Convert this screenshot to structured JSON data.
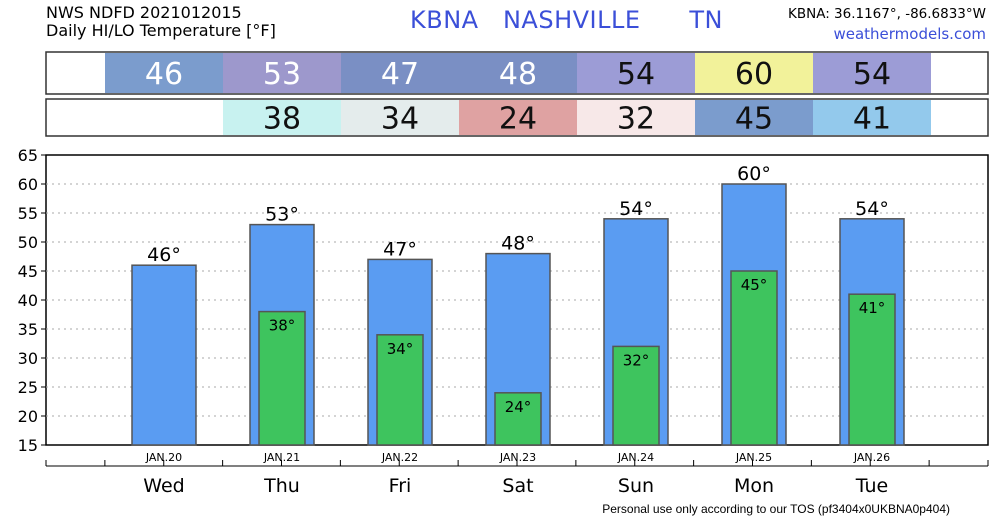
{
  "header": {
    "source_line": "NWS NDFD 2021012015",
    "product_line": "Daily HI/LO Temperature [°F]",
    "station_id": "KBNA",
    "city": "NASHVILLE",
    "state": "TN",
    "coords": "KBNA: 36.1167°, -86.6833°W",
    "site": "weathermodels.com"
  },
  "footer": {
    "disclaimer": "Personal use only according to our TOS (pf3404x0UKBNA0p404)"
  },
  "colors": {
    "high_bar": "#5a9cf2",
    "low_bar": "#3ec45e",
    "bar_stroke": "#555555",
    "table_stroke": "#333333"
  },
  "hi_table": [
    {
      "value": "46",
      "color": "#7b9ccd"
    },
    {
      "value": "53",
      "color": "#9d98cc"
    },
    {
      "value": "47",
      "color": "#7a8fc4"
    },
    {
      "value": "48",
      "color": "#7a8fc4"
    },
    {
      "value": "54",
      "color": "#9c9cd6"
    },
    {
      "value": "60",
      "color": "#f2f29a"
    },
    {
      "value": "54",
      "color": "#9c9cd6"
    }
  ],
  "lo_table": [
    {
      "value": "",
      "color": "#ffffff"
    },
    {
      "value": "38",
      "color": "#c8f2f0"
    },
    {
      "value": "34",
      "color": "#e4ecec"
    },
    {
      "value": "24",
      "color": "#dfa2a2"
    },
    {
      "value": "32",
      "color": "#f7e8e8"
    },
    {
      "value": "45",
      "color": "#7b9ccd"
    },
    {
      "value": "41",
      "color": "#93c9ec"
    }
  ],
  "chart_data": {
    "type": "bar",
    "categories": [
      "Wed",
      "Thu",
      "Fri",
      "Sat",
      "Sun",
      "Mon",
      "Tue"
    ],
    "dates": [
      "JAN.20",
      "JAN.21",
      "JAN.22",
      "JAN.23",
      "JAN.24",
      "JAN.25",
      "JAN.26"
    ],
    "series": [
      {
        "values": [
          46,
          53,
          47,
          48,
          54,
          60,
          54
        ],
        "labels": [
          "46°",
          "53°",
          "47°",
          "48°",
          "54°",
          "60°",
          "54°"
        ]
      },
      {
        "values": [
          null,
          38,
          34,
          24,
          32,
          45,
          41
        ],
        "labels": [
          "",
          "38°",
          "34°",
          "24°",
          "32°",
          "45°",
          "41°"
        ]
      }
    ],
    "title": "Daily HI/LO Temperature [°F]",
    "xlabel": "",
    "ylabel": "",
    "ylim": [
      15,
      65
    ],
    "yticks": [
      15,
      20,
      25,
      30,
      35,
      40,
      45,
      50,
      55,
      60,
      65
    ],
    "grid": true,
    "legend": "none"
  }
}
